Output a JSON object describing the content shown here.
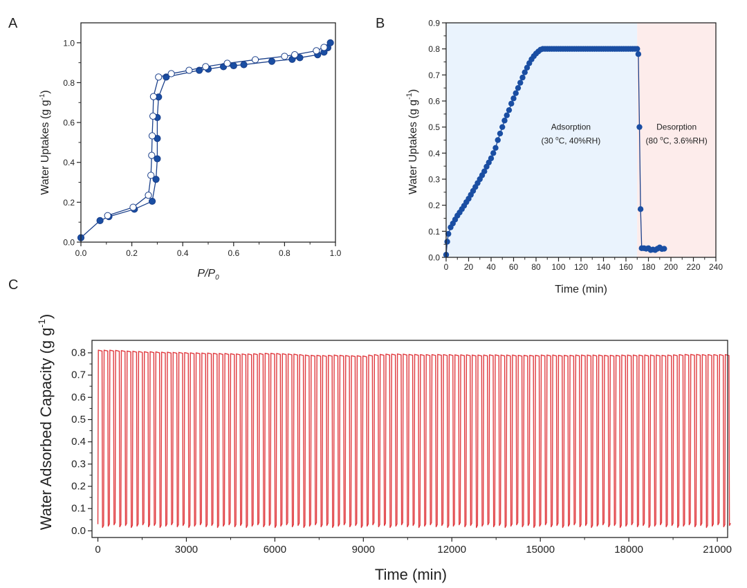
{
  "panel_labels": {
    "a": "A",
    "b": "B",
    "c": "C"
  },
  "colors": {
    "filled_marker": "#1a4ea3",
    "line": "#1a3f8a",
    "adsorption_shade": "#eaf3fd",
    "desorption_shade": "#fdeceb",
    "cycle_line": "#e0393e"
  },
  "chart_data": [
    {
      "panel": "A",
      "type": "scatter",
      "xlabel": {
        "main": "P/P",
        "sub": "0"
      },
      "ylabel": {
        "main": "Water Uptakes (g g",
        "sup": "-1",
        "end": ")"
      },
      "xlim": [
        0,
        1.0
      ],
      "ylim": [
        0,
        1.1
      ],
      "xticks": [
        "0.0",
        "0.2",
        "0.4",
        "0.6",
        "0.8",
        "1.0"
      ],
      "yticks": [
        "0.0",
        "0.2",
        "0.4",
        "0.6",
        "0.8",
        "1.0"
      ],
      "series": [
        {
          "marker": "filled",
          "x": [
            0.0,
            0.075,
            0.11,
            0.21,
            0.28,
            0.295,
            0.3,
            0.3,
            0.3,
            0.305,
            0.335,
            0.465,
            0.5,
            0.56,
            0.6,
            0.64,
            0.75,
            0.83,
            0.86,
            0.93,
            0.955,
            0.97,
            0.98
          ],
          "y": [
            0.022,
            0.108,
            0.128,
            0.165,
            0.205,
            0.315,
            0.418,
            0.52,
            0.625,
            0.728,
            0.828,
            0.862,
            0.868,
            0.88,
            0.885,
            0.89,
            0.907,
            0.917,
            0.925,
            0.94,
            0.953,
            0.975,
            1.0
          ]
        },
        {
          "marker": "open",
          "x": [
            0.955,
            0.925,
            0.84,
            0.8,
            0.685,
            0.575,
            0.49,
            0.425,
            0.355,
            0.305,
            0.285,
            0.283,
            0.28,
            0.278,
            0.275,
            0.265,
            0.205,
            0.105
          ],
          "y": [
            0.977,
            0.96,
            0.94,
            0.932,
            0.915,
            0.897,
            0.88,
            0.862,
            0.845,
            0.828,
            0.73,
            0.632,
            0.533,
            0.435,
            0.335,
            0.235,
            0.175,
            0.133
          ]
        }
      ]
    },
    {
      "panel": "B",
      "type": "scatter",
      "xlabel": "Time (min)",
      "ylabel": {
        "main": "Water Uptakes (g g",
        "sup": "-1",
        "end": ")"
      },
      "xlim": [
        0,
        240
      ],
      "ylim": [
        0,
        0.9
      ],
      "xticks": [
        "0",
        "20",
        "40",
        "60",
        "80",
        "100",
        "120",
        "140",
        "160",
        "180",
        "200",
        "220",
        "240"
      ],
      "yticks": [
        "0.0",
        "0.1",
        "0.2",
        "0.3",
        "0.4",
        "0.5",
        "0.6",
        "0.7",
        "0.8",
        "0.9"
      ],
      "regions": [
        {
          "from": 0,
          "to": 170,
          "phase": "adsorption"
        },
        {
          "from": 170,
          "to": 240,
          "phase": "desorption"
        }
      ],
      "annotations": [
        {
          "line1": "Adsorption",
          "line2a": "(30 ",
          "sup": "o",
          "line2b": "C, 40%RH)",
          "x": 111,
          "y": 0.49
        },
        {
          "line1": "Desorption",
          "line2a": "(80 ",
          "sup": "o",
          "line2b": "C, 3.6%RH)",
          "x": 205,
          "y": 0.49
        }
      ],
      "x": [
        0,
        1,
        2,
        4,
        6,
        8,
        10,
        12,
        14,
        16,
        18,
        20,
        22,
        24,
        26,
        28,
        30,
        32,
        34,
        36,
        38,
        40,
        42,
        44,
        46,
        48,
        50,
        52,
        54,
        56,
        58,
        60,
        62,
        64,
        66,
        68,
        70,
        72,
        74,
        76,
        78,
        80,
        82,
        84,
        86,
        88,
        90,
        92,
        94,
        96,
        98,
        100,
        102,
        104,
        106,
        108,
        110,
        112,
        114,
        116,
        118,
        120,
        122,
        124,
        126,
        128,
        130,
        132,
        134,
        136,
        138,
        140,
        142,
        144,
        146,
        148,
        150,
        152,
        154,
        156,
        158,
        160,
        162,
        164,
        166,
        168,
        170,
        171,
        172,
        173,
        174,
        176,
        178,
        180,
        182,
        184,
        186,
        188,
        190,
        192,
        194
      ],
      "y": [
        0.01,
        0.06,
        0.09,
        0.115,
        0.13,
        0.145,
        0.16,
        0.172,
        0.185,
        0.198,
        0.212,
        0.225,
        0.24,
        0.255,
        0.27,
        0.285,
        0.3,
        0.315,
        0.33,
        0.348,
        0.364,
        0.38,
        0.4,
        0.42,
        0.45,
        0.475,
        0.5,
        0.525,
        0.545,
        0.565,
        0.59,
        0.61,
        0.63,
        0.65,
        0.67,
        0.69,
        0.71,
        0.728,
        0.745,
        0.76,
        0.772,
        0.782,
        0.79,
        0.797,
        0.8,
        0.8,
        0.8,
        0.8,
        0.8,
        0.8,
        0.8,
        0.8,
        0.8,
        0.8,
        0.8,
        0.8,
        0.8,
        0.8,
        0.8,
        0.8,
        0.8,
        0.8,
        0.8,
        0.8,
        0.8,
        0.8,
        0.8,
        0.8,
        0.8,
        0.8,
        0.8,
        0.8,
        0.8,
        0.8,
        0.8,
        0.8,
        0.8,
        0.8,
        0.8,
        0.8,
        0.8,
        0.8,
        0.8,
        0.8,
        0.8,
        0.8,
        0.8,
        0.78,
        0.5,
        0.185,
        0.035,
        0.035,
        0.033,
        0.035,
        0.028,
        0.03,
        0.028,
        0.033,
        0.038,
        0.032,
        0.033
      ]
    },
    {
      "panel": "C",
      "type": "line",
      "xlabel": "Time (min)",
      "ylabel": {
        "main": "Water Adsorbed Capacity (g g",
        "sup": "-1",
        "end": ")"
      },
      "xlim": [
        -200,
        21350
      ],
      "ylim": [
        -0.03,
        0.856
      ],
      "xticks": [
        "0",
        "3000",
        "6000",
        "9000",
        "12000",
        "15000",
        "18000",
        "21000"
      ],
      "yticks": [
        "0.0",
        "0.1",
        "0.2",
        "0.3",
        "0.4",
        "0.5",
        "0.6",
        "0.7",
        "0.8"
      ],
      "cycle_period_min": 195,
      "trough_value": 0.015,
      "cycle_peaks": [
        0.812,
        0.812,
        0.812,
        0.811,
        0.81,
        0.808,
        0.807,
        0.806,
        0.805,
        0.805,
        0.804,
        0.803,
        0.803,
        0.802,
        0.802,
        0.801,
        0.8,
        0.8,
        0.799,
        0.799,
        0.798,
        0.797,
        0.797,
        0.796,
        0.795,
        0.795,
        0.795,
        0.796,
        0.797,
        0.798,
        0.798,
        0.797,
        0.796,
        0.795,
        0.794,
        0.792,
        0.79,
        0.789,
        0.789,
        0.788,
        0.789,
        0.79,
        0.789,
        0.788,
        0.787,
        0.787,
        0.786,
        0.79,
        0.792,
        0.793,
        0.794,
        0.794,
        0.795,
        0.794,
        0.793,
        0.793,
        0.792,
        0.792,
        0.792,
        0.793,
        0.792,
        0.792,
        0.791,
        0.791,
        0.791,
        0.79,
        0.79,
        0.79,
        0.791,
        0.791,
        0.79,
        0.79,
        0.79,
        0.789,
        0.789,
        0.789,
        0.789,
        0.79,
        0.79,
        0.79,
        0.789,
        0.789,
        0.789,
        0.79,
        0.79,
        0.79,
        0.79,
        0.79,
        0.789,
        0.789,
        0.789,
        0.79,
        0.79,
        0.79,
        0.79,
        0.79,
        0.79,
        0.79,
        0.789,
        0.79,
        0.791,
        0.792,
        0.793,
        0.793,
        0.793,
        0.792,
        0.792,
        0.792,
        0.792,
        0.792
      ]
    }
  ]
}
